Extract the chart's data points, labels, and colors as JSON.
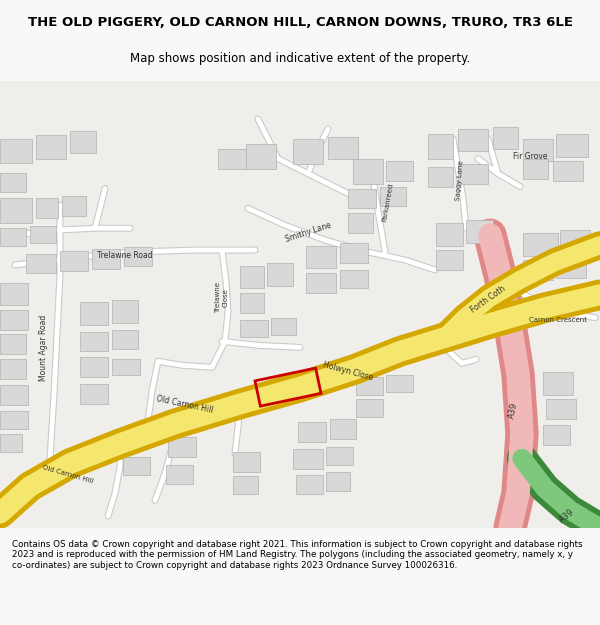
{
  "title_line1": "THE OLD PIGGERY, OLD CARNON HILL, CARNON DOWNS, TRURO, TR3 6LE",
  "title_line2": "Map shows position and indicative extent of the property.",
  "footer": "Contains OS data © Crown copyright and database right 2021. This information is subject to Crown copyright and database rights 2023 and is reproduced with the permission of HM Land Registry. The polygons (including the associated geometry, namely x, y co-ordinates) are subject to Crown copyright and database rights 2023 Ordnance Survey 100026316.",
  "bg_color": "#f8f8f8",
  "map_bg": "#f0eeeb",
  "road_yellow": "#f5e66e",
  "road_yellow_border": "#d4a800",
  "road_pink": "#f0b8b8",
  "road_pink_border": "#e08888",
  "road_green": "#7ec87e",
  "road_green_dark": "#3a8a3a",
  "building_color": "#d8d8d8",
  "building_edge": "#b0b0b0",
  "property_color": "#cc0000",
  "label_color": "#333333",
  "label_fontsize": 5.5
}
